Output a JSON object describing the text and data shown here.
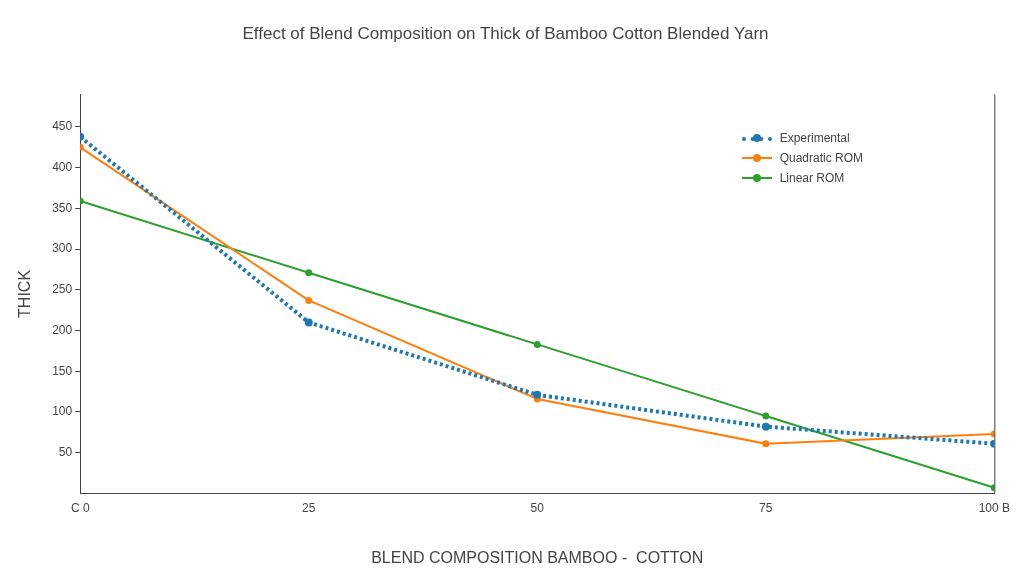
{
  "chart_data": {
    "type": "line",
    "title": "Effect of Blend Composition on Thick of Bamboo Cotton Blended Yarn",
    "xlabel": "BLEND COMPOSITION BAMBOO -  COTTON",
    "ylabel": "THICK",
    "x": [
      0,
      25,
      50,
      75,
      100
    ],
    "xlim": [
      0,
      100
    ],
    "xticks": [
      {
        "value": 0,
        "label": "C 0"
      },
      25,
      50,
      75,
      {
        "value": 100,
        "label": "100 B"
      }
    ],
    "ylim": [
      0,
      490
    ],
    "yticks": [
      50,
      100,
      150,
      200,
      250,
      300,
      350,
      400,
      450
    ],
    "grid": false,
    "legend": "top right",
    "marker": "circle",
    "series": [
      {
        "name": "Experimental",
        "color": "#1f77b4",
        "values": [
          438,
          210,
          121,
          82,
          61
        ],
        "line_style": "dotted"
      },
      {
        "name": "Quadratic ROM",
        "color": "#ff7f0e",
        "values": [
          425,
          237,
          116,
          61,
          73
        ],
        "line_style": "solid"
      },
      {
        "name": "Linear ROM",
        "color": "#2ca02c",
        "values": [
          359,
          271,
          183,
          95,
          7
        ],
        "line_style": "solid"
      }
    ]
  }
}
